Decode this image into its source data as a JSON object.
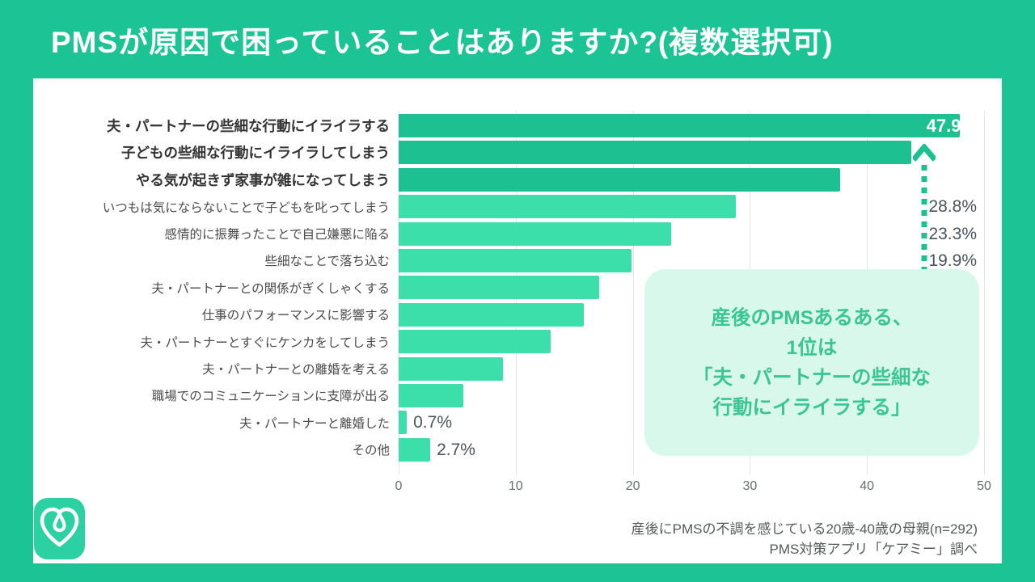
{
  "page": {
    "background_color": "#1CC495",
    "card_color": "#FFFFFF"
  },
  "title": "PMSが原因で困っていることはありますか?(複数選択可)",
  "chart_data": {
    "type": "bar",
    "orientation": "horizontal",
    "title": "PMSが原因で困っていることはありますか?(複数選択可)",
    "categories": [
      "夫・パートナーの些細な行動にイライラする",
      "子どもの些細な行動にイライラしてしまう",
      "やる気が起きず家事が雑になってしまう",
      "いつもは気にならないことで子どもを叱ってしまう",
      "感情的に振舞ったことで自己嫌悪に陥る",
      "些細なことで落ち込む",
      "夫・パートナーとの関係がぎくしゃくする",
      "仕事のパフォーマンスに影響する",
      "夫・パートナーとすぐにケンカをしてしまう",
      "夫・パートナーとの離婚を考える",
      "職場でのコミュニケーションに支障が出る",
      "夫・パートナーと離婚した",
      "その他"
    ],
    "values": [
      47.9,
      43.8,
      37.7,
      28.8,
      23.3,
      19.9,
      17.1,
      15.8,
      13.0,
      8.9,
      5.5,
      0.7,
      2.7
    ],
    "value_suffix": "%",
    "emphasized_count": 3,
    "xlim": [
      0,
      50
    ],
    "xticks": [
      0,
      10,
      20,
      30,
      40,
      50
    ],
    "grid": true,
    "legend": "none",
    "bar_color_emphasized": "#1DC091",
    "bar_color_default": "#3CDEA9",
    "inside_label_min_value": 5
  },
  "annotation": {
    "lines": [
      "産後のPMSあるある、",
      "1位は",
      "「夫・パートナーの些細な",
      "行動にイライラする」"
    ],
    "bg_color": "#D9F8EC",
    "text_color": "#3BC596",
    "arrow_color": "#1DC091"
  },
  "footer": {
    "line1": "産後にPMSの不調を感じている20歳-40歳の母親(n=292)",
    "line2": "PMS対策アプリ「ケアミー」調べ"
  },
  "logo": {
    "name": "careme-app-logo",
    "color": "#2BD0A3"
  }
}
